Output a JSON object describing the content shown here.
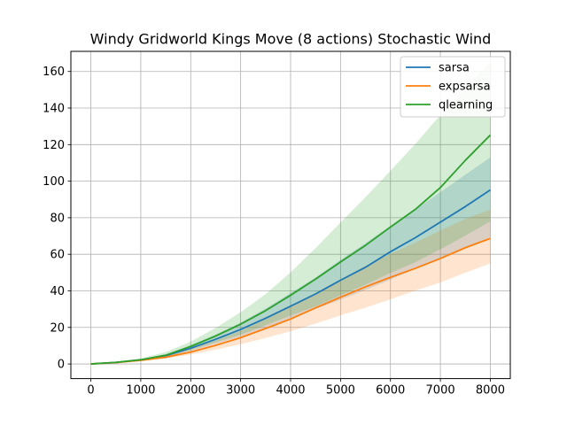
{
  "chart_data": {
    "type": "line",
    "title": "Windy Gridworld Kings Move (8 actions) Stochastic Wind",
    "xlabel": "",
    "ylabel": "",
    "xlim": [
      -400,
      8400
    ],
    "ylim": [
      -8,
      171
    ],
    "xticks": [
      0,
      1000,
      2000,
      3000,
      4000,
      5000,
      6000,
      7000,
      8000
    ],
    "yticks": [
      0,
      20,
      40,
      60,
      80,
      100,
      120,
      140,
      160
    ],
    "grid": true,
    "legend_position": "top-right",
    "x": [
      0,
      500,
      1000,
      1500,
      2000,
      2500,
      3000,
      3500,
      4000,
      4500,
      5000,
      5500,
      6000,
      6500,
      7000,
      7500,
      8000
    ],
    "series": [
      {
        "name": "sarsa",
        "color": "#1f77b4",
        "values": [
          0,
          0.8,
          2.2,
          4.6,
          8.6,
          13.5,
          18.9,
          25,
          31.6,
          38.3,
          45.8,
          52.9,
          61.4,
          69.1,
          77.6,
          86.1,
          95.2
        ],
        "lower": [
          0,
          0.7,
          2,
          4,
          7.1,
          11,
          15,
          19.9,
          24.8,
          30,
          35.2,
          40.5,
          46.2,
          52,
          57.6,
          63.2,
          69.5
        ],
        "upper": [
          0,
          1.1,
          2.6,
          5.2,
          10.2,
          16.1,
          22.6,
          30.3,
          38.8,
          47.3,
          57,
          66,
          75.6,
          84.5,
          94,
          103.5,
          113
        ]
      },
      {
        "name": "expsarsa",
        "color": "#ff7f0e",
        "values": [
          0,
          0.8,
          2,
          3.7,
          6.5,
          10.2,
          14.4,
          19.4,
          24.6,
          30.7,
          36.5,
          42.2,
          47.4,
          52.3,
          57.7,
          63.6,
          68.7
        ],
        "lower": [
          0,
          0.6,
          1.6,
          3,
          5.2,
          7.8,
          10.8,
          14.2,
          17.9,
          22.1,
          26.6,
          30.8,
          35.4,
          40.1,
          44.6,
          49.9,
          55
        ],
        "upper": [
          0,
          1.1,
          2.6,
          4.7,
          8.3,
          12.8,
          18.1,
          24.6,
          31.3,
          38.9,
          46.3,
          53.6,
          60.2,
          66.4,
          73,
          79.4,
          84.5
        ]
      },
      {
        "name": "qlearning",
        "color": "#2ca02c",
        "values": [
          0,
          0.9,
          2.3,
          4.8,
          9.6,
          15.3,
          21.8,
          29.2,
          37.6,
          46.4,
          55.8,
          64.9,
          74.9,
          84.6,
          96.5,
          111.4,
          125.2
        ],
        "lower": [
          0,
          0.7,
          1.9,
          3.8,
          7.7,
          11.8,
          16,
          21.2,
          26.5,
          31.5,
          37.5,
          43.4,
          49.8,
          55.7,
          62.7,
          70.2,
          78
        ],
        "upper": [
          0,
          1.2,
          3,
          6.5,
          12.2,
          19.7,
          28.3,
          38.2,
          50.1,
          63.3,
          77.4,
          91.2,
          105.7,
          120.4,
          136.2,
          151.4,
          165
        ]
      }
    ]
  }
}
